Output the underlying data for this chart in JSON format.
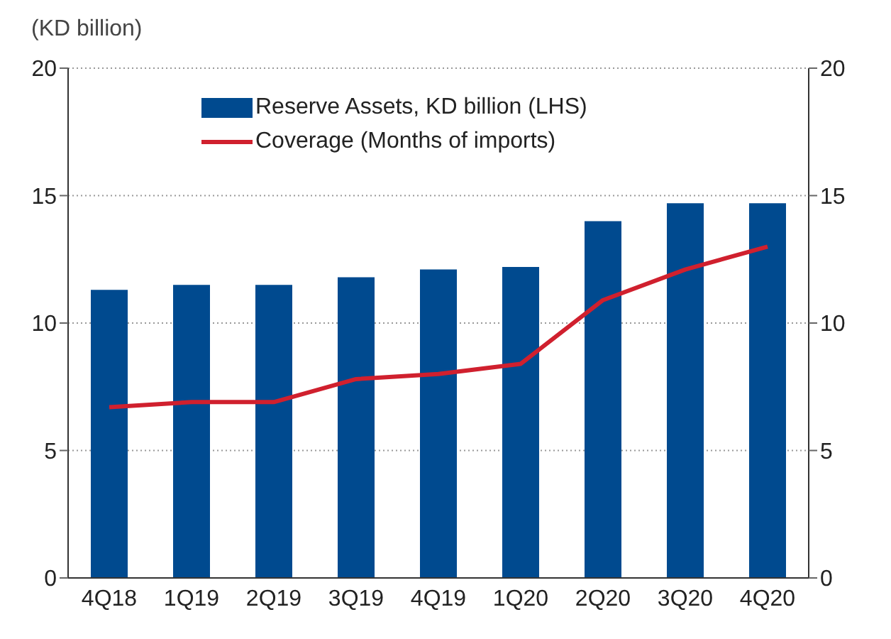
{
  "chart_data": {
    "type": "bar",
    "ylabel": "(KD billion)",
    "categories": [
      "4Q18",
      "1Q19",
      "2Q19",
      "3Q19",
      "4Q19",
      "1Q20",
      "2Q20",
      "3Q20",
      "4Q20"
    ],
    "series": [
      {
        "name": "Reserve Assets, KD billion (LHS)",
        "color": "#004a8f",
        "values": [
          11.3,
          11.5,
          11.5,
          11.8,
          12.1,
          12.2,
          14.0,
          14.7,
          14.7
        ]
      },
      {
        "name": "Coverage (Months of imports)",
        "type": "line",
        "axis": "y2",
        "color": "#d0202e",
        "values": [
          6.7,
          6.9,
          6.9,
          7.8,
          8.0,
          8.4,
          10.9,
          12.1,
          13.0
        ]
      }
    ],
    "ylim": [
      0,
      20
    ],
    "yticks": [
      0,
      5,
      10,
      15,
      20
    ],
    "y2lim": [
      0,
      20
    ],
    "y2ticks": [
      0,
      5,
      10,
      15,
      20
    ],
    "grid": "y",
    "legend": "top",
    "marker": "none"
  }
}
